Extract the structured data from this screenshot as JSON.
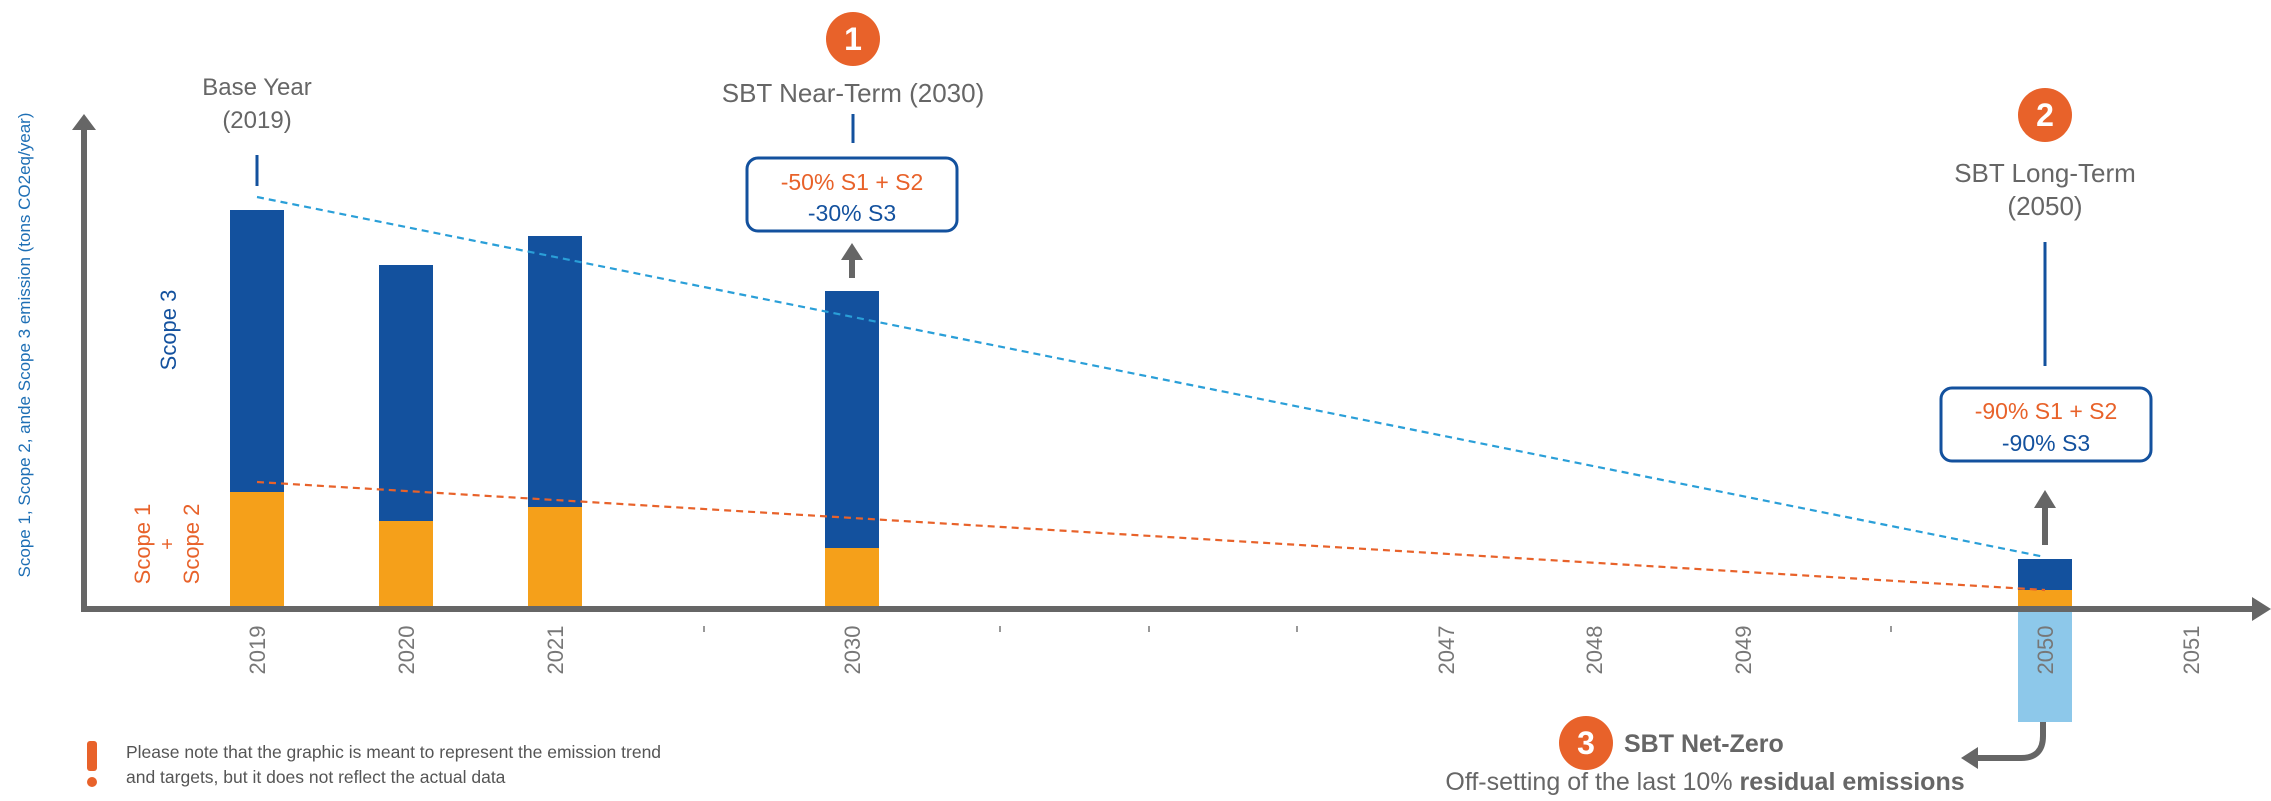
{
  "chart_data": {
    "type": "bar",
    "stacked": true,
    "categories": [
      "2019",
      "2020",
      "2021",
      "",
      "2030",
      "",
      "",
      "",
      "2047",
      "2048",
      "2049",
      "",
      "2050",
      "2051"
    ],
    "series": [
      {
        "name": "Scope 1 + Scope 2",
        "color": "#F5A01A",
        "values": [
          115,
          86,
          100,
          null,
          59,
          null,
          null,
          null,
          null,
          null,
          null,
          null,
          17,
          null
        ]
      },
      {
        "name": "Scope 3",
        "color": "#13519E",
        "values": [
          282,
          256,
          271,
          null,
          257,
          null,
          null,
          null,
          null,
          null,
          null,
          null,
          31,
          null
        ]
      }
    ],
    "trend_lines": [
      {
        "name": "Scope 1 + Scope 2 trend",
        "color": "#E8622A",
        "style": "dashed",
        "from": {
          "x": "2019",
          "y": 125
        },
        "to": {
          "x": "2050",
          "y": 17
        }
      },
      {
        "name": "Total emission trend",
        "color": "#2A9FD8",
        "style": "dashed",
        "from": {
          "x": "2019",
          "y": 410
        },
        "to": {
          "x": "2050",
          "y": 50
        }
      }
    ],
    "residual_bar": {
      "x": "2050",
      "color": "#8DC8EA",
      "description": "off-set residual emissions below axis"
    },
    "ylabel": "Scope 1, Scope 2, ande Scope 3 emission (tons CO2eq/year)",
    "ylim": [
      0,
      460
    ],
    "series_labels": {
      "scope3": "Scope 3",
      "scope12_line1": "Scope 1",
      "scope12_plus": "+",
      "scope12_line2": "Scope 2"
    },
    "annotations": {
      "base_year_line1": "Base Year",
      "base_year_line2": "(2019)",
      "near_term_number": "1",
      "near_term_title": "SBT Near-Term (2030)",
      "near_term_s12": "-50% S1 + S2",
      "near_term_s3": "-30% S3",
      "long_term_number": "2",
      "long_term_title_line1": "SBT Long-Term",
      "long_term_title_line2": "(2050)",
      "long_term_s12": "-90% S1 + S2",
      "long_term_s3": "-90% S3",
      "net_zero_number": "3",
      "net_zero_title": "SBT Net-Zero",
      "net_zero_desc_start": "Off-setting of the last 10% ",
      "net_zero_desc_bold": "residual emissions"
    },
    "note": {
      "icon": "exclamation-icon",
      "line1": "Please note that the graphic is meant to represent the emission trend",
      "line2": "and targets, but it does not reflect the actual data"
    },
    "colors": {
      "axis": "#666666",
      "text_gray": "#666666",
      "orange_accent": "#E8622A",
      "navy": "#13519E",
      "ylabel_blue": "#1E6FB5"
    }
  }
}
